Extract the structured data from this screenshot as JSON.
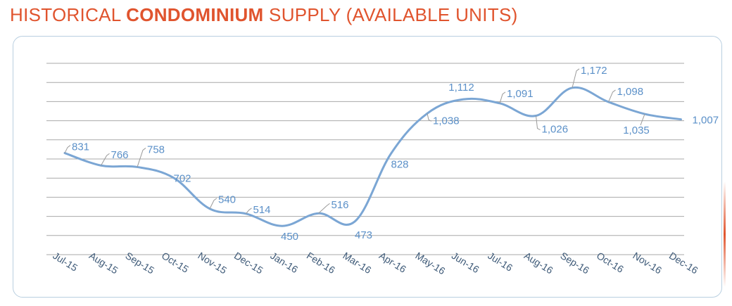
{
  "title": {
    "prefix": "HISTORICAL ",
    "highlight": "CONDOMINIUM",
    "suffix": " SUPPLY (AVAILABLE UNITS)"
  },
  "colors": {
    "title": "#e0542e",
    "line": "#7ba6d4",
    "label": "#5b90c8",
    "grid": "#a9a9a9",
    "border": "#b9cfe0"
  },
  "chart_data": {
    "type": "line",
    "categories": [
      "Jul-15",
      "Aug-15",
      "Sep-15",
      "Oct-15",
      "Nov-15",
      "Dec-15",
      "Jan-16",
      "Feb-16",
      "Mar-16",
      "Apr-16",
      "May-16",
      "Jun-16",
      "Jul-16",
      "Aug-16",
      "Sep-16",
      "Oct-16",
      "Nov-16",
      "Dec-16"
    ],
    "series": [
      {
        "values": [
          831,
          766,
          758,
          702,
          540,
          514,
          450,
          516,
          473,
          828,
          1038,
          1112,
          1091,
          1026,
          1172,
          1098,
          1035,
          1007
        ]
      }
    ],
    "data_labels": [
      "831",
      "766",
      "758",
      "702",
      "540",
      "514",
      "450",
      "516",
      "473",
      "828",
      "1,038",
      "1,112",
      "1,091",
      "1,026",
      "1,172",
      "1,098",
      "1,035",
      "1,007"
    ],
    "ylim": [
      300,
      1300
    ],
    "grid": true,
    "legend": "none",
    "smooth": true
  }
}
